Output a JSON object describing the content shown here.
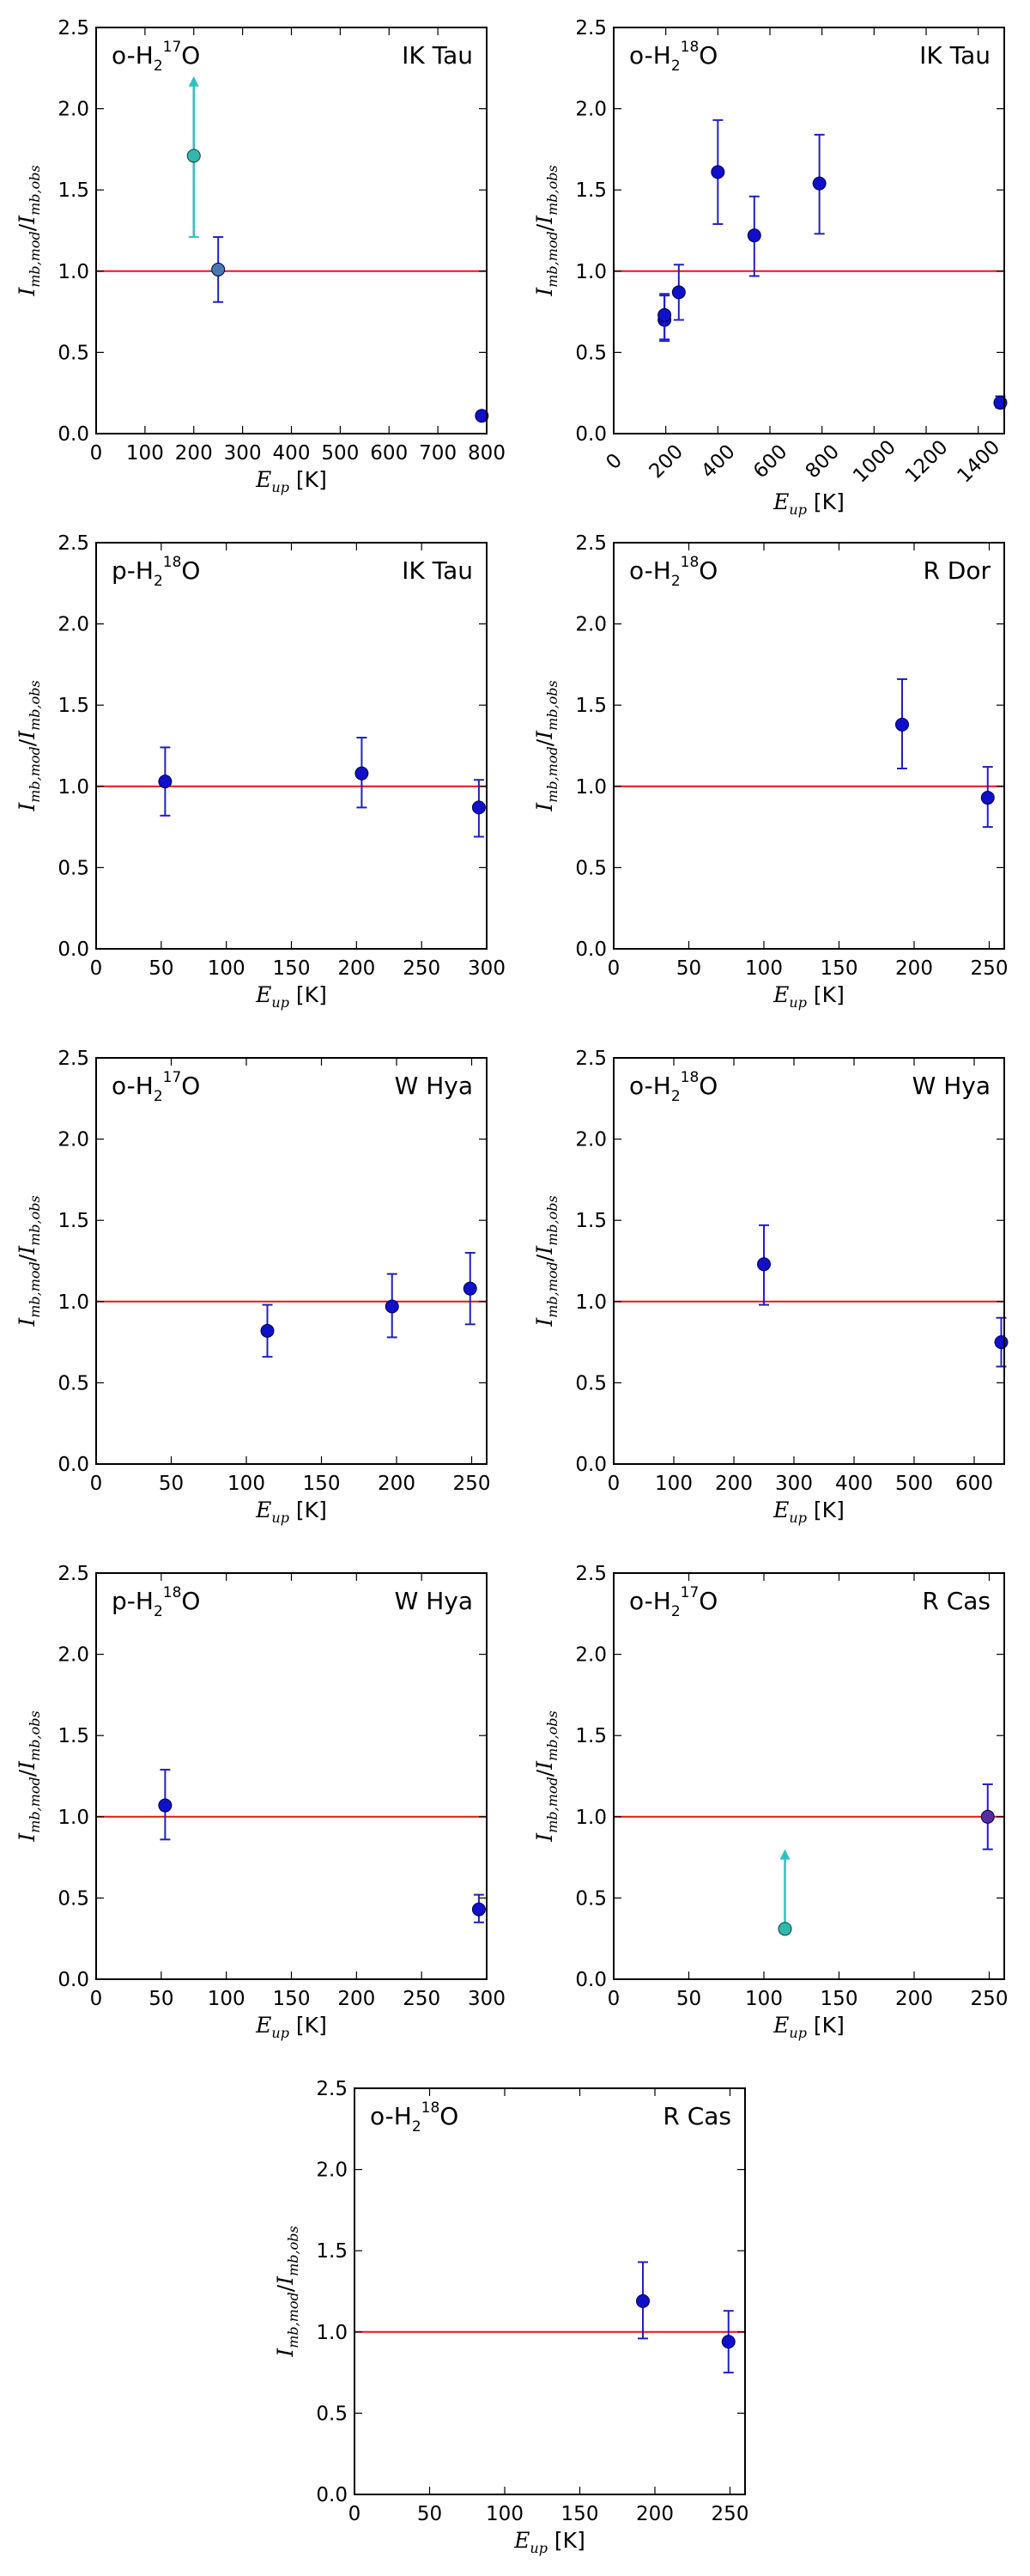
{
  "figure": {
    "axis_common": {
      "ylabel": {
        "sym": "I",
        "num_sub": "mb,mod",
        "den_sub": "mb,obs"
      },
      "xlabel": {
        "sym": "E",
        "sub": "up",
        "unit": "[K]"
      },
      "reference_line": 1.0
    },
    "colors": {
      "point": "#1010c8",
      "point_cyan": "#30b8b0",
      "errbar": "#2020c0",
      "errbar_cyan": "#30c0c0",
      "reference": "#ee1111",
      "frame": "#000000"
    }
  },
  "chart_data": [
    {
      "type": "scatter",
      "species": {
        "prefix": "o-H",
        "sub": "2",
        "sup": "17",
        "suffix": "O"
      },
      "star": "IK Tau",
      "xlim": [
        0,
        800
      ],
      "ylim": [
        0.0,
        2.5
      ],
      "xticks": [
        0,
        100,
        200,
        300,
        400,
        500,
        600,
        700,
        800
      ],
      "xticklabels": [
        "0",
        "100",
        "200",
        "300",
        "400",
        "500",
        "600",
        "700",
        "800"
      ],
      "xtick_rot": false,
      "yticks": [
        0.0,
        0.5,
        1.0,
        1.5,
        2.0,
        2.5
      ],
      "yticklabels": [
        "0.0",
        "0.5",
        "1.0",
        "1.5",
        "2.0",
        "2.5"
      ],
      "points": [
        {
          "x": 200,
          "y": 1.71,
          "ylo": 1.21,
          "yhi": 2.2,
          "kind": "lower-limit"
        },
        {
          "x": 250,
          "y": 1.01,
          "ylo": 0.81,
          "yhi": 1.21,
          "kind": "normal-cyan"
        },
        {
          "x": 790,
          "y": 0.11,
          "ylo": 0.11,
          "yhi": 0.11,
          "kind": "normal"
        }
      ]
    },
    {
      "type": "scatter",
      "species": {
        "prefix": "o-H",
        "sub": "2",
        "sup": "18",
        "suffix": "O"
      },
      "star": "IK Tau",
      "xlim": [
        0,
        1500
      ],
      "ylim": [
        0.0,
        2.5
      ],
      "xticks": [
        0,
        200,
        400,
        600,
        800,
        1000,
        1200,
        1400
      ],
      "xticklabels": [
        "0",
        "200",
        "400",
        "600",
        "800",
        "1000",
        "1200",
        "1400"
      ],
      "xtick_rot": true,
      "yticks": [
        0.0,
        0.5,
        1.0,
        1.5,
        2.0,
        2.5
      ],
      "yticklabels": [
        "0.0",
        "0.5",
        "1.0",
        "1.5",
        "2.0",
        "2.5"
      ],
      "points": [
        {
          "x": 195,
          "y": 0.7,
          "ylo": 0.57,
          "yhi": 0.85,
          "kind": "normal"
        },
        {
          "x": 195,
          "y": 0.73,
          "ylo": 0.58,
          "yhi": 0.86,
          "kind": "normal"
        },
        {
          "x": 250,
          "y": 0.87,
          "ylo": 0.7,
          "yhi": 1.04,
          "kind": "normal"
        },
        {
          "x": 400,
          "y": 1.61,
          "ylo": 1.29,
          "yhi": 1.93,
          "kind": "normal"
        },
        {
          "x": 540,
          "y": 1.22,
          "ylo": 0.97,
          "yhi": 1.46,
          "kind": "normal"
        },
        {
          "x": 790,
          "y": 1.54,
          "ylo": 1.23,
          "yhi": 1.84,
          "kind": "normal"
        },
        {
          "x": 1485,
          "y": 0.19,
          "ylo": 0.16,
          "yhi": 0.23,
          "kind": "normal"
        }
      ]
    },
    {
      "type": "scatter",
      "species": {
        "prefix": "p-H",
        "sub": "2",
        "sup": "18",
        "suffix": "O"
      },
      "star": "IK Tau",
      "xlim": [
        0,
        300
      ],
      "ylim": [
        0.0,
        2.5
      ],
      "xticks": [
        0,
        50,
        100,
        150,
        200,
        250,
        300
      ],
      "xticklabels": [
        "0",
        "50",
        "100",
        "150",
        "200",
        "250",
        "300"
      ],
      "xtick_rot": false,
      "yticks": [
        0.0,
        0.5,
        1.0,
        1.5,
        2.0,
        2.5
      ],
      "yticklabels": [
        "0.0",
        "0.5",
        "1.0",
        "1.5",
        "2.0",
        "2.5"
      ],
      "points": [
        {
          "x": 53,
          "y": 1.03,
          "ylo": 0.82,
          "yhi": 1.24,
          "kind": "normal"
        },
        {
          "x": 204,
          "y": 1.08,
          "ylo": 0.87,
          "yhi": 1.3,
          "kind": "normal"
        },
        {
          "x": 294,
          "y": 0.87,
          "ylo": 0.69,
          "yhi": 1.04,
          "kind": "normal"
        }
      ]
    },
    {
      "type": "scatter",
      "species": {
        "prefix": "o-H",
        "sub": "2",
        "sup": "18",
        "suffix": "O"
      },
      "star": "R Dor",
      "xlim": [
        0,
        260
      ],
      "ylim": [
        0.0,
        2.5
      ],
      "xticks": [
        0,
        50,
        100,
        150,
        200,
        250
      ],
      "xticklabels": [
        "0",
        "50",
        "100",
        "150",
        "200",
        "250"
      ],
      "xtick_rot": false,
      "yticks": [
        0.0,
        0.5,
        1.0,
        1.5,
        2.0,
        2.5
      ],
      "yticklabels": [
        "0.0",
        "0.5",
        "1.0",
        "1.5",
        "2.0",
        "2.5"
      ],
      "points": [
        {
          "x": 192,
          "y": 1.38,
          "ylo": 1.11,
          "yhi": 1.66,
          "kind": "normal"
        },
        {
          "x": 249,
          "y": 0.93,
          "ylo": 0.75,
          "yhi": 1.12,
          "kind": "normal"
        }
      ]
    },
    {
      "type": "scatter",
      "species": {
        "prefix": "o-H",
        "sub": "2",
        "sup": "17",
        "suffix": "O"
      },
      "star": "W Hya",
      "xlim": [
        0,
        260
      ],
      "ylim": [
        0.0,
        2.5
      ],
      "xticks": [
        0,
        50,
        100,
        150,
        200,
        250
      ],
      "xticklabels": [
        "0",
        "50",
        "100",
        "150",
        "200",
        "250"
      ],
      "xtick_rot": false,
      "yticks": [
        0.0,
        0.5,
        1.0,
        1.5,
        2.0,
        2.5
      ],
      "yticklabels": [
        "0.0",
        "0.5",
        "1.0",
        "1.5",
        "2.0",
        "2.5"
      ],
      "points": [
        {
          "x": 114,
          "y": 0.82,
          "ylo": 0.66,
          "yhi": 0.98,
          "kind": "normal"
        },
        {
          "x": 197,
          "y": 0.97,
          "ylo": 0.78,
          "yhi": 1.17,
          "kind": "normal"
        },
        {
          "x": 249,
          "y": 1.08,
          "ylo": 0.86,
          "yhi": 1.3,
          "kind": "normal"
        }
      ]
    },
    {
      "type": "scatter",
      "species": {
        "prefix": "o-H",
        "sub": "2",
        "sup": "18",
        "suffix": "O"
      },
      "star": "W Hya",
      "xlim": [
        0,
        650
      ],
      "ylim": [
        0.0,
        2.5
      ],
      "xticks": [
        0,
        100,
        200,
        300,
        400,
        500,
        600
      ],
      "xticklabels": [
        "0",
        "100",
        "200",
        "300",
        "400",
        "500",
        "600"
      ],
      "xtick_rot": false,
      "yticks": [
        0.0,
        0.5,
        1.0,
        1.5,
        2.0,
        2.5
      ],
      "yticklabels": [
        "0.0",
        "0.5",
        "1.0",
        "1.5",
        "2.0",
        "2.5"
      ],
      "points": [
        {
          "x": 250,
          "y": 1.23,
          "ylo": 0.98,
          "yhi": 1.47,
          "kind": "normal"
        },
        {
          "x": 645,
          "y": 0.75,
          "ylo": 0.6,
          "yhi": 0.9,
          "kind": "normal"
        }
      ]
    },
    {
      "type": "scatter",
      "species": {
        "prefix": "p-H",
        "sub": "2",
        "sup": "18",
        "suffix": "O"
      },
      "star": "W Hya",
      "xlim": [
        0,
        300
      ],
      "ylim": [
        0.0,
        2.5
      ],
      "xticks": [
        0,
        50,
        100,
        150,
        200,
        250,
        300
      ],
      "xticklabels": [
        "0",
        "50",
        "100",
        "150",
        "200",
        "250",
        "300"
      ],
      "xtick_rot": false,
      "yticks": [
        0.0,
        0.5,
        1.0,
        1.5,
        2.0,
        2.5
      ],
      "yticklabels": [
        "0.0",
        "0.5",
        "1.0",
        "1.5",
        "2.0",
        "2.5"
      ],
      "points": [
        {
          "x": 53,
          "y": 1.07,
          "ylo": 0.86,
          "yhi": 1.29,
          "kind": "normal"
        },
        {
          "x": 294,
          "y": 0.43,
          "ylo": 0.35,
          "yhi": 0.52,
          "kind": "normal"
        }
      ]
    },
    {
      "type": "scatter",
      "species": {
        "prefix": "o-H",
        "sub": "2",
        "sup": "17",
        "suffix": "O"
      },
      "star": "R Cas",
      "xlim": [
        0,
        260
      ],
      "ylim": [
        0.0,
        2.5
      ],
      "xticks": [
        0,
        50,
        100,
        150,
        200,
        250
      ],
      "xticklabels": [
        "0",
        "50",
        "100",
        "150",
        "200",
        "250"
      ],
      "xtick_rot": false,
      "yticks": [
        0.0,
        0.5,
        1.0,
        1.5,
        2.0,
        2.5
      ],
      "yticklabels": [
        "0.0",
        "0.5",
        "1.0",
        "1.5",
        "2.0",
        "2.5"
      ],
      "points": [
        {
          "x": 114,
          "y": 0.31,
          "ylo": 0.31,
          "yhi": 0.8,
          "kind": "lower-limit"
        },
        {
          "x": 249,
          "y": 1.0,
          "ylo": 0.8,
          "yhi": 1.2,
          "kind": "normal-purple"
        }
      ]
    },
    {
      "type": "scatter",
      "species": {
        "prefix": "o-H",
        "sub": "2",
        "sup": "18",
        "suffix": "O"
      },
      "star": "R Cas",
      "xlim": [
        0,
        260
      ],
      "ylim": [
        0.0,
        2.5
      ],
      "xticks": [
        0,
        50,
        100,
        150,
        200,
        250
      ],
      "xticklabels": [
        "0",
        "50",
        "100",
        "150",
        "200",
        "250"
      ],
      "xtick_rot": false,
      "yticks": [
        0.0,
        0.5,
        1.0,
        1.5,
        2.0,
        2.5
      ],
      "yticklabels": [
        "0.0",
        "0.5",
        "1.0",
        "1.5",
        "2.0",
        "2.5"
      ],
      "points": [
        {
          "x": 192,
          "y": 1.19,
          "ylo": 0.96,
          "yhi": 1.43,
          "kind": "normal"
        },
        {
          "x": 249,
          "y": 0.94,
          "ylo": 0.75,
          "yhi": 1.13,
          "kind": "normal"
        }
      ]
    }
  ]
}
